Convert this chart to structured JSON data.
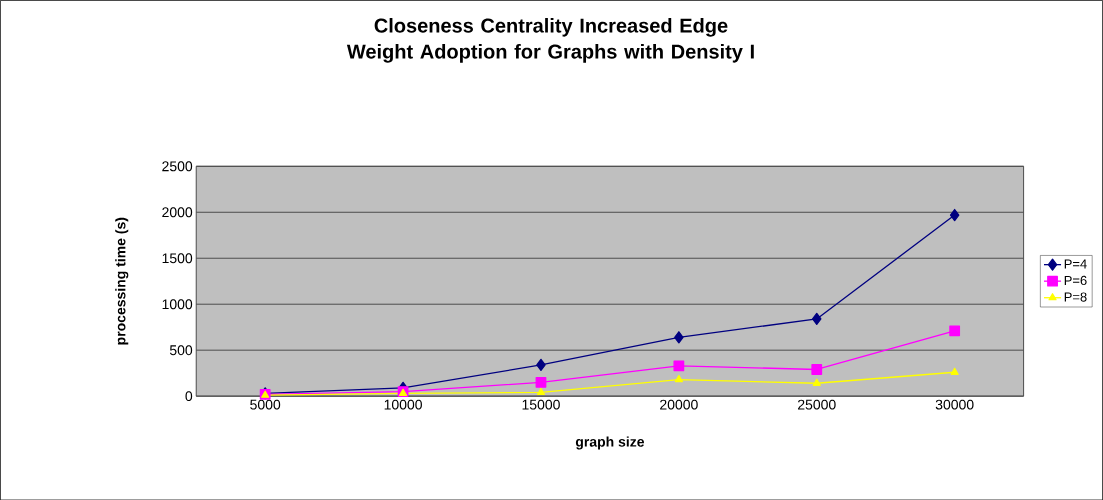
{
  "chart_data": {
    "type": "line",
    "title": "Closeness Centrality Increased Edge Weight Adoption for Graphs with Density I",
    "xlabel": "graph size",
    "ylabel": "processing time (s)",
    "categories": [
      "5000",
      "10000",
      "15000",
      "20000",
      "25000",
      "30000"
    ],
    "series": [
      {
        "name": "P=4",
        "color": "#000080",
        "marker": "diamond",
        "values": [
          30,
          90,
          340,
          640,
          840,
          1970
        ]
      },
      {
        "name": "P=6",
        "color": "#ff00ff",
        "marker": "square",
        "values": [
          20,
          50,
          150,
          330,
          290,
          710
        ]
      },
      {
        "name": "P=8",
        "color": "#ffff00",
        "marker": "triangle",
        "values": [
          10,
          30,
          40,
          180,
          140,
          260
        ]
      }
    ],
    "ylim": [
      0,
      2500
    ],
    "yticks": [
      0,
      500,
      1000,
      1500,
      2000,
      2500
    ],
    "grid": "y",
    "legend": "right"
  }
}
